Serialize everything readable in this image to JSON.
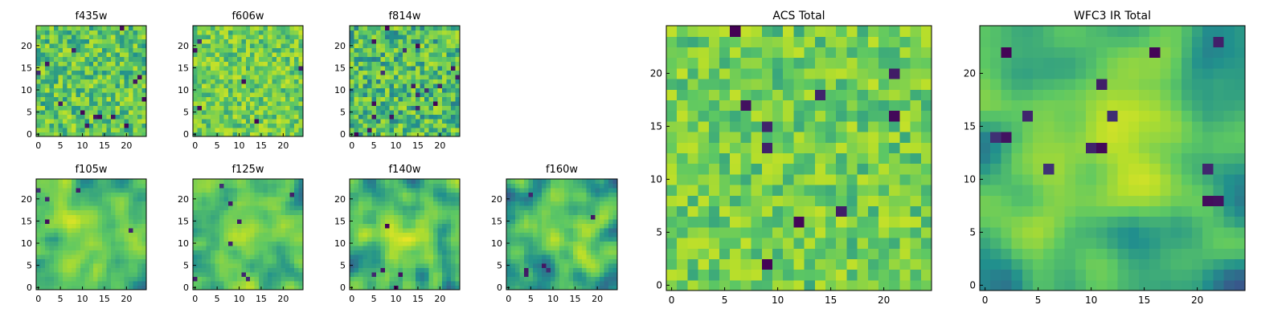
{
  "figure": {
    "colormap_stops": [
      "#440154",
      "#3b528b",
      "#21908d",
      "#5dc863",
      "#b5de2b",
      "#fde725"
    ]
  },
  "chart_data": [
    {
      "type": "heatmap",
      "title": "f435w",
      "grid_size": 25,
      "xlim": [
        -0.5,
        24.5
      ],
      "ylim": [
        -0.5,
        24.5
      ],
      "x_ticks": [
        0,
        5,
        10,
        15,
        20
      ],
      "y_ticks": [
        0,
        5,
        10,
        15,
        20
      ],
      "pattern": {
        "seed": 11,
        "smooth": 0,
        "mean": 0.62,
        "spread": 0.22,
        "dark_pixels": 14,
        "blob": 0
      }
    },
    {
      "type": "heatmap",
      "title": "f606w",
      "grid_size": 25,
      "xlim": [
        -0.5,
        24.5
      ],
      "ylim": [
        -0.5,
        24.5
      ],
      "x_ticks": [
        0,
        5,
        10,
        15,
        20
      ],
      "y_ticks": [
        0,
        5,
        10,
        15,
        20
      ],
      "pattern": {
        "seed": 23,
        "smooth": 0,
        "mean": 0.66,
        "spread": 0.2,
        "dark_pixels": 6,
        "blob": 0
      }
    },
    {
      "type": "heatmap",
      "title": "f814w",
      "grid_size": 25,
      "xlim": [
        -0.5,
        24.5
      ],
      "ylim": [
        -0.5,
        24.5
      ],
      "x_ticks": [
        0,
        5,
        10,
        15,
        20
      ],
      "y_ticks": [
        0,
        5,
        10,
        15,
        20
      ],
      "pattern": {
        "seed": 37,
        "smooth": 0,
        "mean": 0.58,
        "spread": 0.24,
        "dark_pixels": 18,
        "blob": 0
      }
    },
    {
      "type": "heatmap",
      "title": "f105w",
      "grid_size": 25,
      "xlim": [
        -0.5,
        24.5
      ],
      "ylim": [
        -0.5,
        24.5
      ],
      "x_ticks": [
        0,
        5,
        10,
        15,
        20
      ],
      "y_ticks": [
        0,
        5,
        10,
        15,
        20
      ],
      "pattern": {
        "seed": 41,
        "smooth": 2,
        "mean": 0.6,
        "spread": 0.26,
        "dark_pixels": 5,
        "blob": 0.15
      }
    },
    {
      "type": "heatmap",
      "title": "f125w",
      "grid_size": 25,
      "xlim": [
        -0.5,
        24.5
      ],
      "ylim": [
        -0.5,
        24.5
      ],
      "x_ticks": [
        0,
        5,
        10,
        15,
        20
      ],
      "y_ticks": [
        0,
        5,
        10,
        15,
        20
      ],
      "pattern": {
        "seed": 53,
        "smooth": 2,
        "mean": 0.6,
        "spread": 0.26,
        "dark_pixels": 8,
        "blob": 0.12
      }
    },
    {
      "type": "heatmap",
      "title": "f140w",
      "grid_size": 25,
      "xlim": [
        -0.5,
        24.5
      ],
      "ylim": [
        -0.5,
        24.5
      ],
      "x_ticks": [
        0,
        5,
        10,
        15,
        20
      ],
      "y_ticks": [
        0,
        5,
        10,
        15,
        20
      ],
      "pattern": {
        "seed": 67,
        "smooth": 2,
        "mean": 0.6,
        "spread": 0.27,
        "dark_pixels": 5,
        "blob": 0.2
      }
    },
    {
      "type": "heatmap",
      "title": "f160w",
      "grid_size": 25,
      "xlim": [
        -0.5,
        24.5
      ],
      "ylim": [
        -0.5,
        24.5
      ],
      "x_ticks": [
        0,
        5,
        10,
        15,
        20
      ],
      "y_ticks": [
        0,
        5,
        10,
        15,
        20
      ],
      "pattern": {
        "seed": 79,
        "smooth": 2,
        "mean": 0.56,
        "spread": 0.26,
        "dark_pixels": 6,
        "blob": 0.22
      }
    },
    {
      "type": "heatmap",
      "title": "ACS Total",
      "grid_size": 25,
      "xlim": [
        -0.5,
        24.5
      ],
      "ylim": [
        -0.5,
        24.5
      ],
      "x_ticks": [
        0,
        5,
        10,
        15,
        20
      ],
      "y_ticks": [
        0,
        5,
        10,
        15,
        20
      ],
      "pattern": {
        "seed": 97,
        "smooth": 0,
        "mean": 0.66,
        "spread": 0.18,
        "dark_pixels": 10,
        "blob": 0
      }
    },
    {
      "type": "heatmap",
      "title": "WFC3 IR Total",
      "grid_size": 25,
      "xlim": [
        -0.5,
        24.5
      ],
      "ylim": [
        -0.5,
        24.5
      ],
      "x_ticks": [
        0,
        5,
        10,
        15,
        20
      ],
      "y_ticks": [
        0,
        5,
        10,
        15,
        20
      ],
      "pattern": {
        "seed": 131,
        "smooth": 3,
        "mean": 0.58,
        "spread": 0.24,
        "dark_pixels": 14,
        "blob": 0.35
      }
    }
  ]
}
